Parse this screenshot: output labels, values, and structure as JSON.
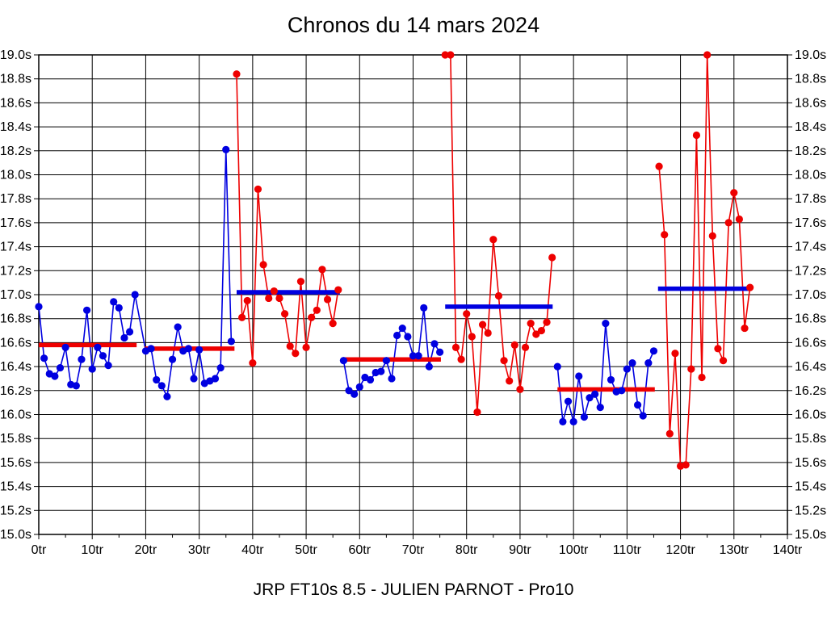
{
  "title": "Chronos du 14 mars 2024",
  "footer": "JRP FT10s 8.5 - JULIEN PARNOT - Pro10",
  "colors": {
    "blue_series": "#0000e0",
    "red_series": "#ee0000",
    "grid": "#000000",
    "text": "#000000",
    "background": "#ffffff"
  },
  "chart_data": {
    "type": "line",
    "title": "Chronos du 14 mars 2024",
    "xlabel": "",
    "ylabel": "",
    "x_unit": "tr",
    "y_unit": "s",
    "xlim": [
      0,
      140
    ],
    "ylim": [
      15.0,
      19.0
    ],
    "grid": true,
    "legend_position": "none",
    "x_tick_step": 10,
    "x_minor_tick_step": 5,
    "y_tick_step": 0.2,
    "x_tick_labels": [
      "0tr",
      "10tr",
      "20tr",
      "30tr",
      "40tr",
      "50tr",
      "60tr",
      "70tr",
      "80tr",
      "90tr",
      "100tr",
      "110tr",
      "120tr",
      "130tr",
      "140tr"
    ],
    "y_tick_labels": [
      "15.0s",
      "15.2s",
      "15.4s",
      "15.6s",
      "15.8s",
      "16.0s",
      "16.2s",
      "16.4s",
      "16.6s",
      "16.8s",
      "17.0s",
      "17.2s",
      "17.4s",
      "17.6s",
      "17.8s",
      "18.0s",
      "18.2s",
      "18.4s",
      "18.6s",
      "18.8s",
      "19.0s"
    ],
    "y_labels_both_sides": true,
    "series_note": "lap times in seconds per lap (tour); each stint has a thick horizontal average line of the opposite colour",
    "stints": [
      {
        "name": "stint-1",
        "point_color": "blue",
        "start_lap": 0,
        "connect_to_previous": false,
        "lap_times": [
          16.9,
          16.47,
          16.34,
          16.32,
          16.39,
          16.56,
          16.25,
          16.24,
          16.46,
          16.87,
          16.38,
          16.56,
          16.49,
          16.41,
          16.94,
          16.89,
          16.64,
          16.69,
          17.0
        ],
        "average": 16.58,
        "average_color": "red",
        "average_span": [
          0,
          18.3
        ]
      },
      {
        "name": "stint-2",
        "point_color": "blue",
        "start_lap": 20,
        "connect_to_previous": true,
        "lap_times": [
          16.53,
          16.55,
          16.29,
          16.24,
          16.15,
          16.46,
          16.73,
          16.53,
          16.55,
          16.3,
          16.54,
          16.26,
          16.28,
          16.3,
          16.39,
          18.21,
          16.61
        ],
        "average": 16.55,
        "average_color": "red",
        "average_span": [
          19.8,
          36.6
        ]
      },
      {
        "name": "stint-3",
        "point_color": "red",
        "start_lap": 37,
        "connect_to_previous": false,
        "lap_times": [
          18.84,
          16.81,
          16.95,
          16.43,
          17.88,
          17.25,
          16.97,
          17.03,
          16.97,
          16.84,
          16.57,
          16.51,
          17.11,
          16.56,
          16.81,
          16.87,
          17.21,
          16.96,
          16.76,
          17.04
        ],
        "average": 17.02,
        "average_color": "blue",
        "average_span": [
          37,
          56.3
        ]
      },
      {
        "name": "stint-4",
        "point_color": "blue",
        "start_lap": 57,
        "connect_to_previous": false,
        "lap_times": [
          16.45,
          16.2,
          16.17,
          16.23,
          16.31,
          16.29,
          16.35,
          16.36,
          16.45,
          16.3,
          16.66,
          16.72,
          16.65,
          16.49,
          16.49,
          16.89,
          16.4,
          16.59,
          16.52
        ],
        "average": 16.46,
        "average_color": "red",
        "average_span": [
          56.9,
          75.2
        ]
      },
      {
        "name": "stint-5",
        "point_color": "red",
        "start_lap": 76,
        "connect_to_previous": false,
        "lap_times": [
          19.0,
          19.0,
          16.56,
          16.46,
          16.84,
          16.65,
          16.02,
          16.75,
          16.68,
          17.46,
          16.99,
          16.45,
          16.28,
          16.58,
          16.21,
          16.56,
          16.76,
          16.67,
          16.7,
          16.77,
          17.31
        ],
        "average": 16.9,
        "average_color": "blue",
        "average_span": [
          76,
          96.1
        ]
      },
      {
        "name": "stint-6",
        "point_color": "blue",
        "start_lap": 97,
        "connect_to_previous": false,
        "lap_times": [
          16.4,
          15.94,
          16.11,
          15.94,
          16.32,
          15.98,
          16.14,
          16.17,
          16.06,
          16.76,
          16.29,
          16.19,
          16.2,
          16.38,
          16.43,
          16.08,
          15.99,
          16.43,
          16.53
        ],
        "average": 16.21,
        "average_color": "red",
        "average_span": [
          97,
          115.2
        ]
      },
      {
        "name": "stint-7",
        "point_color": "red",
        "start_lap": 116,
        "connect_to_previous": false,
        "lap_times": [
          18.07,
          17.5,
          15.84,
          16.51,
          15.57,
          15.58,
          16.38,
          18.33,
          16.31,
          19.0,
          17.49,
          16.55,
          16.45,
          17.6,
          17.85,
          17.63,
          16.72,
          17.06
        ],
        "average": 17.05,
        "average_color": "blue",
        "average_span": [
          115.8,
          133.2
        ]
      }
    ]
  }
}
